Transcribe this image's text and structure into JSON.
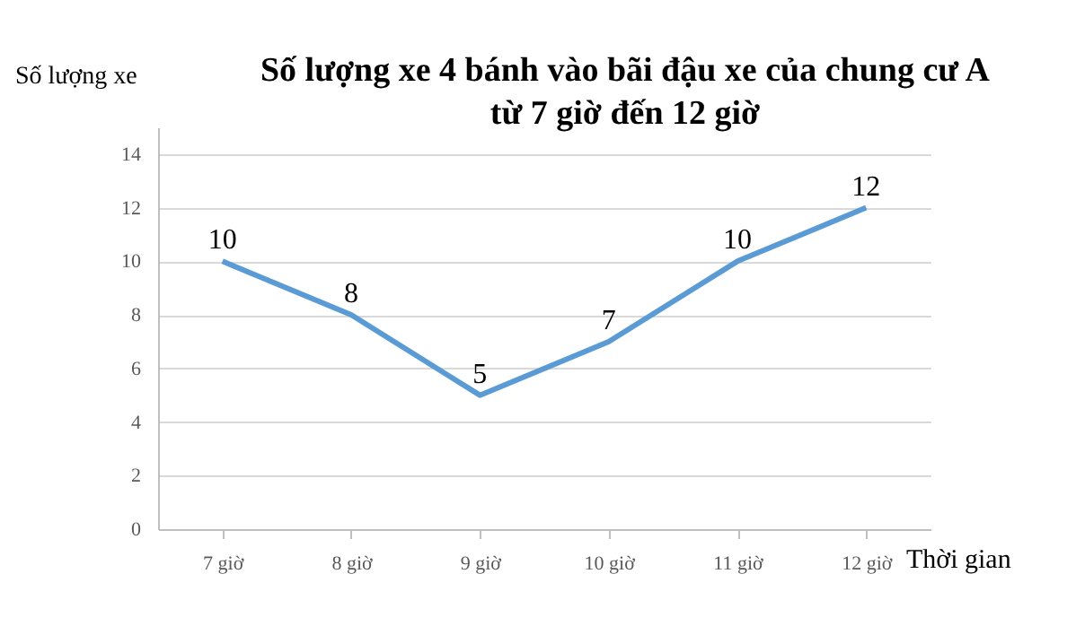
{
  "chart_data": {
    "type": "line",
    "title": "Số lượng xe 4 bánh vào bãi đậu xe của chung cư A\ntừ 7 giờ đến 12 giờ",
    "xlabel": "Thời gian",
    "ylabel": "Số lượng xe",
    "categories": [
      "7 giờ",
      "8 giờ",
      "9 giờ",
      "10 giờ",
      "11 giờ",
      "12 giờ"
    ],
    "series": [
      {
        "color": "#5b9bd5",
        "values": [
          10,
          8,
          5,
          7,
          10,
          12
        ]
      }
    ],
    "ylim": [
      0,
      15
    ],
    "yticks": [
      0,
      2,
      4,
      6,
      8,
      10,
      12,
      14
    ],
    "grid": "y",
    "data_labels": true,
    "marker": "none",
    "line_style": "solid"
  }
}
